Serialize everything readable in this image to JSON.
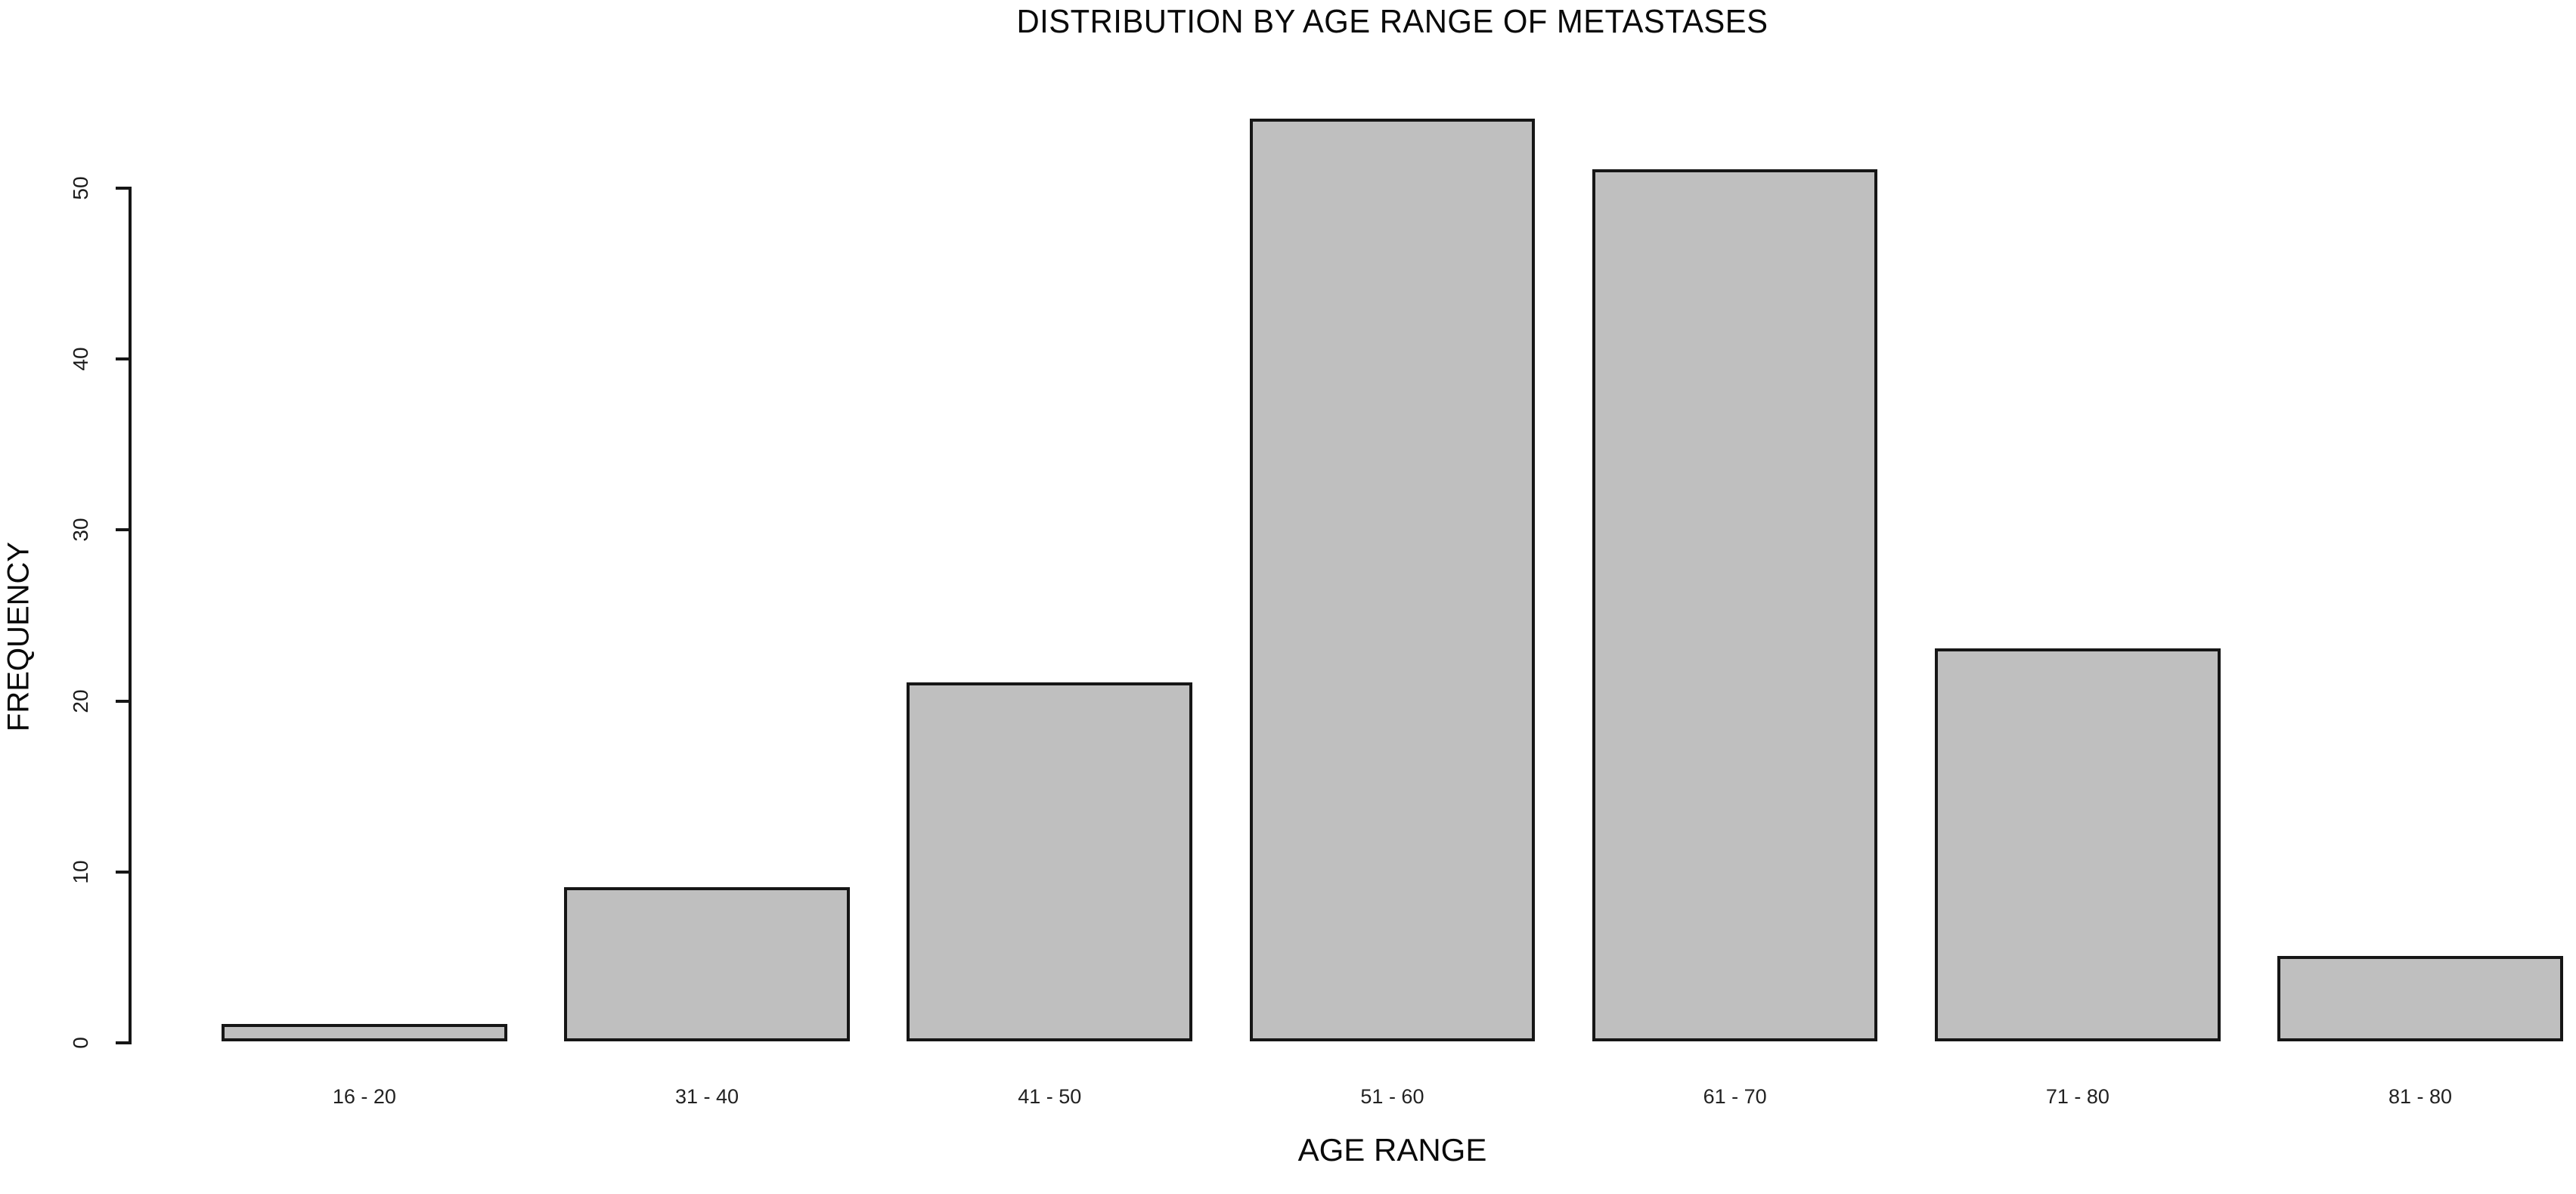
{
  "page": {
    "background": "#ffffff",
    "text_color": "#0a0a0a"
  },
  "chart_data": {
    "type": "bar",
    "title": "DISTRIBUTION BY AGE RANGE OF METASTASES",
    "xlabel": "AGE RANGE",
    "ylabel": "FREQUENCY",
    "categories": [
      "16 - 20",
      "31 - 40",
      "41 - 50",
      "51 - 60",
      "61 - 70",
      "71 - 80",
      "81 - 80"
    ],
    "values": [
      1,
      9,
      21,
      54,
      51,
      23,
      5
    ],
    "y_ticks": [
      0,
      10,
      20,
      30,
      40,
      50
    ],
    "ylim": [
      0,
      54
    ],
    "grid": false,
    "legend": false,
    "bar_fill": "#bfbfbf",
    "bar_border": "#161616",
    "axis_color": "#161616"
  }
}
